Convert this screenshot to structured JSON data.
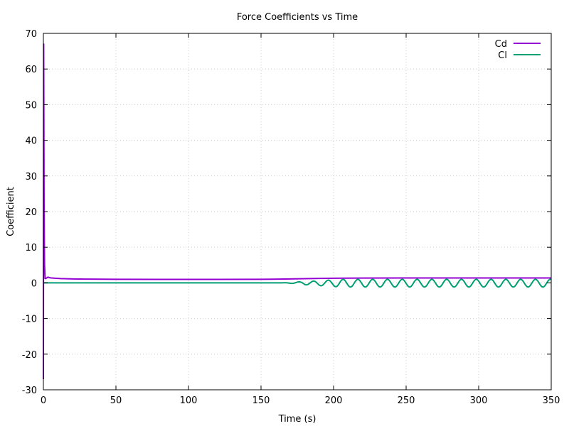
{
  "chart_data": {
    "type": "line",
    "title": "Force Coefficients vs Time",
    "xlabel": "Time (s)",
    "ylabel": "Coefficient",
    "xlim": [
      0,
      350
    ],
    "ylim": [
      -30,
      70
    ],
    "xticks": [
      0,
      50,
      100,
      150,
      200,
      250,
      300,
      350
    ],
    "yticks": [
      -30,
      -20,
      -10,
      0,
      10,
      20,
      30,
      40,
      50,
      60,
      70
    ],
    "grid": true,
    "legend_position": "top-right",
    "series": [
      {
        "name": "Cd",
        "color": "#9400d3",
        "x": [
          0,
          0.2,
          0.5,
          0.8,
          1.2,
          2,
          3,
          5,
          8,
          12,
          20,
          30,
          50,
          80,
          120,
          150,
          170,
          190,
          200,
          220,
          250,
          280,
          310,
          350
        ],
        "y": [
          -27,
          67,
          20,
          5,
          1.2,
          1.3,
          1.6,
          1.4,
          1.3,
          1.2,
          1.1,
          1.05,
          1.0,
          0.98,
          0.98,
          1.0,
          1.1,
          1.25,
          1.3,
          1.35,
          1.38,
          1.38,
          1.38,
          1.38
        ]
      },
      {
        "name": "Cl",
        "color": "#009e73",
        "x": [
          0,
          150,
          160,
          165,
          170,
          175,
          180,
          185,
          190,
          195,
          200,
          350
        ],
        "y": [
          0,
          0,
          0.02,
          -0.05,
          0.08,
          -0.1,
          0.15,
          -0.2,
          0.3,
          -0.4,
          0.5,
          0.6
        ],
        "oscillation_region": {
          "x_start": 180,
          "x_end": 350,
          "period": 10.2,
          "amplitude": 0.6,
          "mean": -0.05
        }
      }
    ]
  }
}
